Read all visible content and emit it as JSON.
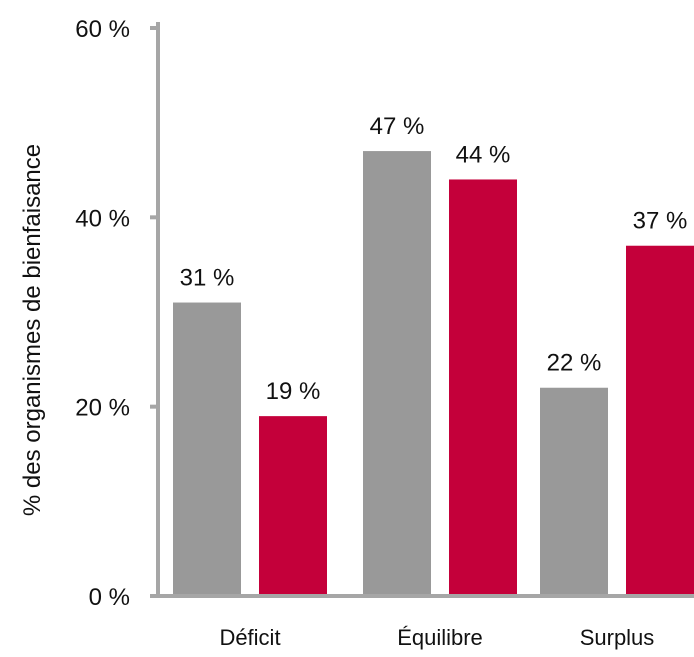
{
  "chart_data": {
    "type": "bar",
    "title": "",
    "xlabel": "",
    "ylabel": "% des organismes de bienfaisance",
    "categories": [
      "Déficit",
      "Équilibre",
      "Surplus"
    ],
    "series": [
      {
        "values": [
          31,
          47,
          22
        ],
        "color": "#999999"
      },
      {
        "values": [
          19,
          44,
          37
        ],
        "color": "#c4003a"
      }
    ],
    "data_labels": [
      [
        "31 %",
        "47 %",
        "22 %"
      ],
      [
        "19 %",
        "44 %",
        "37 %"
      ]
    ],
    "ylim": [
      0,
      60
    ],
    "yticks": [
      0,
      20,
      40,
      60
    ],
    "ytick_labels": [
      "0 %",
      "20 %",
      "40 %",
      "60 %"
    ],
    "grid": false,
    "legend": "none"
  }
}
